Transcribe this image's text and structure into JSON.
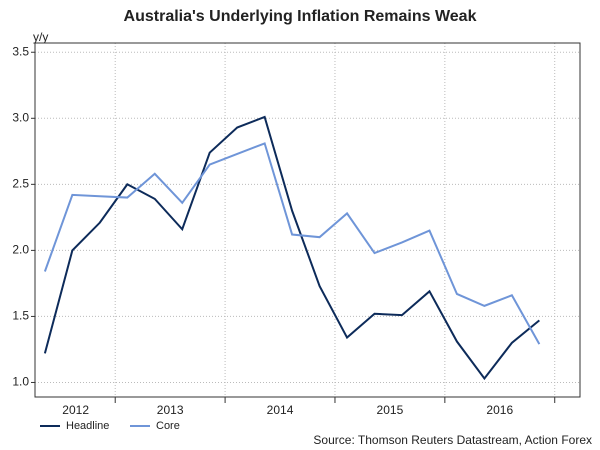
{
  "chart_data": {
    "type": "line",
    "title": "Australia's Underlying Inflation Remains Weak",
    "ylabel": "y/y",
    "source": "Source: Thomson Reuters Datastream, Action Forex",
    "x": [
      2012.36,
      2012.61,
      2012.86,
      2013.11,
      2013.36,
      2013.61,
      2013.86,
      2014.11,
      2014.36,
      2014.61,
      2014.86,
      2015.11,
      2015.36,
      2015.61,
      2015.86,
      2016.11,
      2016.36,
      2016.61,
      2016.86
    ],
    "series": [
      {
        "name": "Headline",
        "color": "#0d2b5a",
        "values": [
          1.22,
          2.0,
          2.21,
          2.5,
          2.39,
          2.16,
          2.74,
          2.93,
          3.01,
          2.3,
          1.73,
          1.34,
          1.52,
          1.51,
          1.69,
          1.31,
          1.03,
          1.3,
          1.47
        ]
      },
      {
        "name": "Core",
        "color": "#6f95d8",
        "values": [
          1.84,
          2.42,
          2.41,
          2.4,
          2.58,
          2.36,
          2.65,
          2.73,
          2.81,
          2.12,
          2.1,
          2.28,
          1.98,
          2.06,
          2.15,
          1.67,
          1.58,
          1.66,
          1.29
        ]
      }
    ],
    "xlim": [
      2012.27,
      2017.23
    ],
    "xticks": [
      2013,
      2014,
      2015,
      2016,
      2017
    ],
    "xtick_labels": [
      {
        "value": 2012.64,
        "label": "2012"
      },
      {
        "value": 2013.5,
        "label": "2013"
      },
      {
        "value": 2014.5,
        "label": "2014"
      },
      {
        "value": 2015.5,
        "label": "2015"
      },
      {
        "value": 2016.5,
        "label": "2016"
      }
    ],
    "ylim": [
      0.89,
      3.57
    ],
    "yticks": [
      {
        "value": 1,
        "label": "1.0"
      },
      {
        "value": 1.5,
        "label": "1.5"
      },
      {
        "value": 2,
        "label": "2.0"
      },
      {
        "value": 2.5,
        "label": "2.5"
      },
      {
        "value": 3,
        "label": "3.0"
      },
      {
        "value": 3.5,
        "label": "3.5"
      }
    ],
    "grid": true,
    "legend": "bottom-left"
  }
}
